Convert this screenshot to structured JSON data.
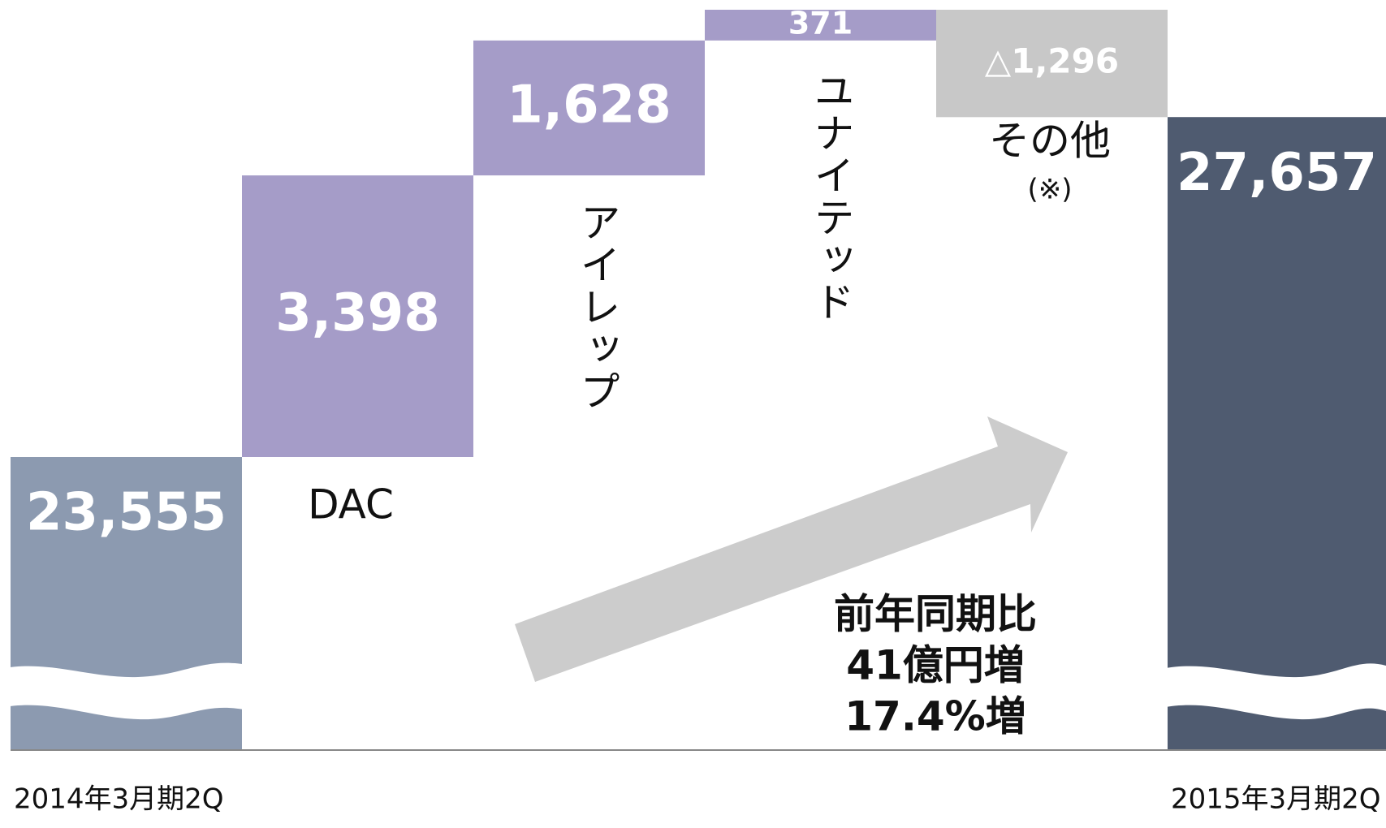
{
  "chart_data": {
    "type": "waterfall",
    "categories": [
      "2014年3月期2Q",
      "DAC",
      "アイレップ",
      "ユナイテッド",
      "その他",
      "2015年3月期2Q"
    ],
    "values": [
      23555,
      3398,
      1628,
      371,
      -1296,
      27657
    ],
    "value_labels": [
      "23,555",
      "3,398",
      "1,628",
      "371",
      "△1,296",
      "27,657"
    ],
    "colors": [
      "#8c9ab0",
      "#a59cc8",
      "#a59cc8",
      "#a59cc8",
      "#c8c8c8",
      "#4f5b70"
    ],
    "category_note": "(※)",
    "annotation": [
      "前年同期比",
      "41億円増",
      "17.4%増"
    ]
  }
}
